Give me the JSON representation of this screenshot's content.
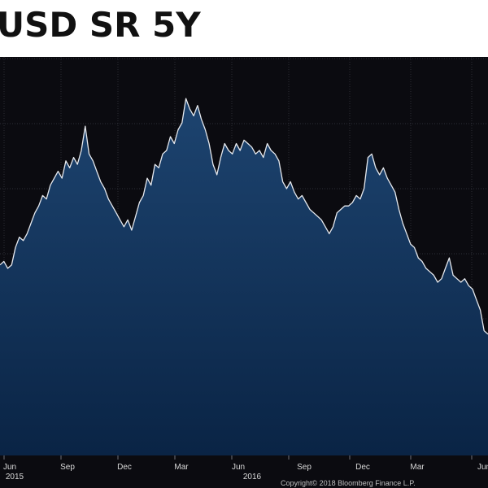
{
  "chart_data": {
    "type": "area",
    "title": "USD SR 5Y",
    "xlabel": "",
    "ylabel": "",
    "grid": true,
    "x_tick_labels": [
      "Jun",
      "Sep",
      "Dec",
      "Mar",
      "Jun",
      "Sep",
      "Dec",
      "Mar",
      "Jun"
    ],
    "x_year_labels": [
      "2015",
      "2016"
    ],
    "copyright": "Copyright© 2018 Bloomberg Finance L.P.",
    "colors": {
      "background": "#0b0b10",
      "fill_top": "#1d4470",
      "fill_bottom": "#0a2445",
      "line": "#e6e9ee",
      "grid": "#3a3d45"
    },
    "series": [
      {
        "values": [
          55,
          56,
          54,
          55,
          60,
          63,
          62,
          64,
          67,
          70,
          72,
          75,
          74,
          78,
          80,
          82,
          80,
          85,
          83,
          86,
          84,
          88,
          95,
          87,
          85,
          82,
          79,
          77,
          74,
          72,
          70,
          68,
          66,
          68,
          65,
          69,
          73,
          75,
          80,
          78,
          84,
          83,
          87,
          88,
          92,
          90,
          94,
          96,
          103,
          100,
          98,
          101,
          97,
          94,
          90,
          84,
          81,
          86,
          90,
          88,
          87,
          90,
          88,
          91,
          90,
          89,
          87,
          88,
          86,
          90,
          88,
          87,
          85,
          79,
          77,
          79,
          76,
          74,
          75,
          73,
          71,
          70,
          69,
          68,
          66,
          64,
          66,
          70,
          71,
          72,
          72,
          73,
          75,
          74,
          77,
          86,
          87,
          83,
          81,
          83,
          80,
          78,
          76,
          71,
          67,
          64,
          61,
          60,
          57,
          56,
          54,
          53,
          52,
          50,
          51,
          54,
          57,
          52,
          51,
          50,
          51,
          49,
          48,
          45,
          42,
          36,
          35
        ]
      }
    ]
  }
}
